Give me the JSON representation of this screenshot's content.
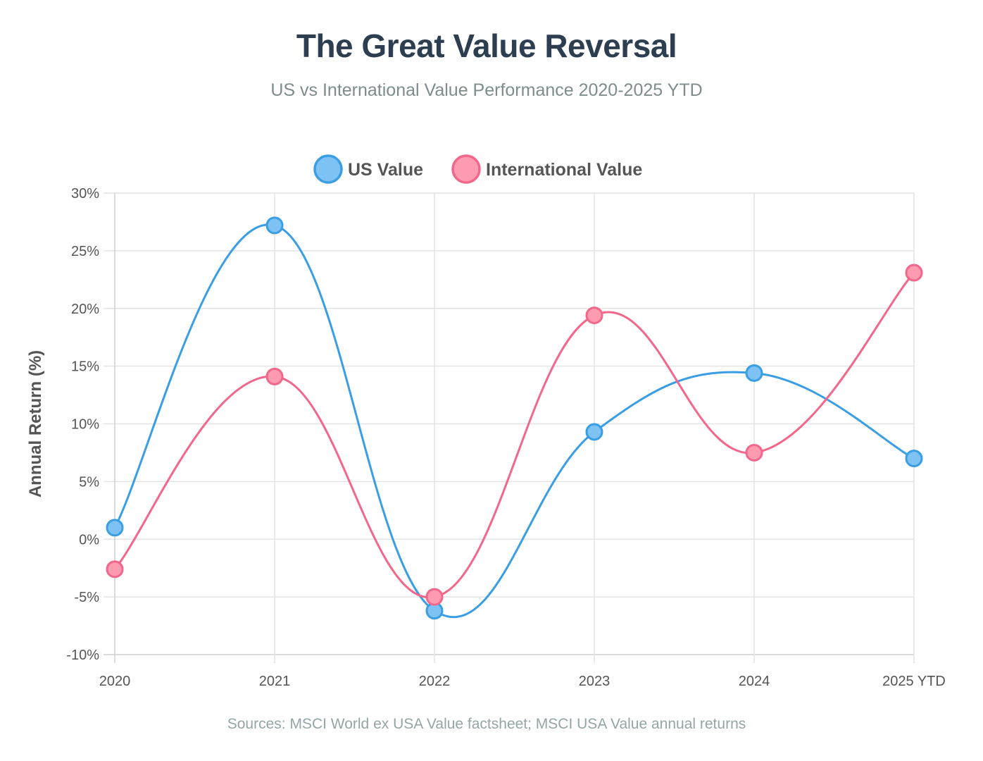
{
  "header": {
    "title": "The Great Value Reversal",
    "subtitle": "US vs International Value Performance 2020-2025 YTD"
  },
  "footer": {
    "source": "Sources: MSCI World ex USA Value factsheet; MSCI USA Value annual returns"
  },
  "chart_data": {
    "type": "line",
    "title": "The Great Value Reversal",
    "subtitle": "US vs International Value Performance 2020-2025 YTD",
    "xlabel": "",
    "ylabel": "Annual Return (%)",
    "categories": [
      "2020",
      "2021",
      "2022",
      "2023",
      "2024",
      "2025 YTD"
    ],
    "ylim": [
      -10,
      30
    ],
    "yticks": [
      -10,
      -5,
      0,
      5,
      10,
      15,
      20,
      25,
      30
    ],
    "ytick_labels": [
      "-10%",
      "-5%",
      "0%",
      "5%",
      "10%",
      "15%",
      "20%",
      "25%",
      "30%"
    ],
    "grid": true,
    "legend": "top-center",
    "smooth": true,
    "series": [
      {
        "name": "US Value",
        "values": [
          1.0,
          27.2,
          -6.2,
          9.3,
          14.4,
          7.0
        ],
        "color": "#3a9ee4",
        "fill": "#7ec1f3"
      },
      {
        "name": "International Value",
        "values": [
          -2.6,
          14.1,
          -5.0,
          19.4,
          7.5,
          23.1
        ],
        "color": "#f2678a",
        "fill": "#ff9bb0"
      }
    ]
  }
}
